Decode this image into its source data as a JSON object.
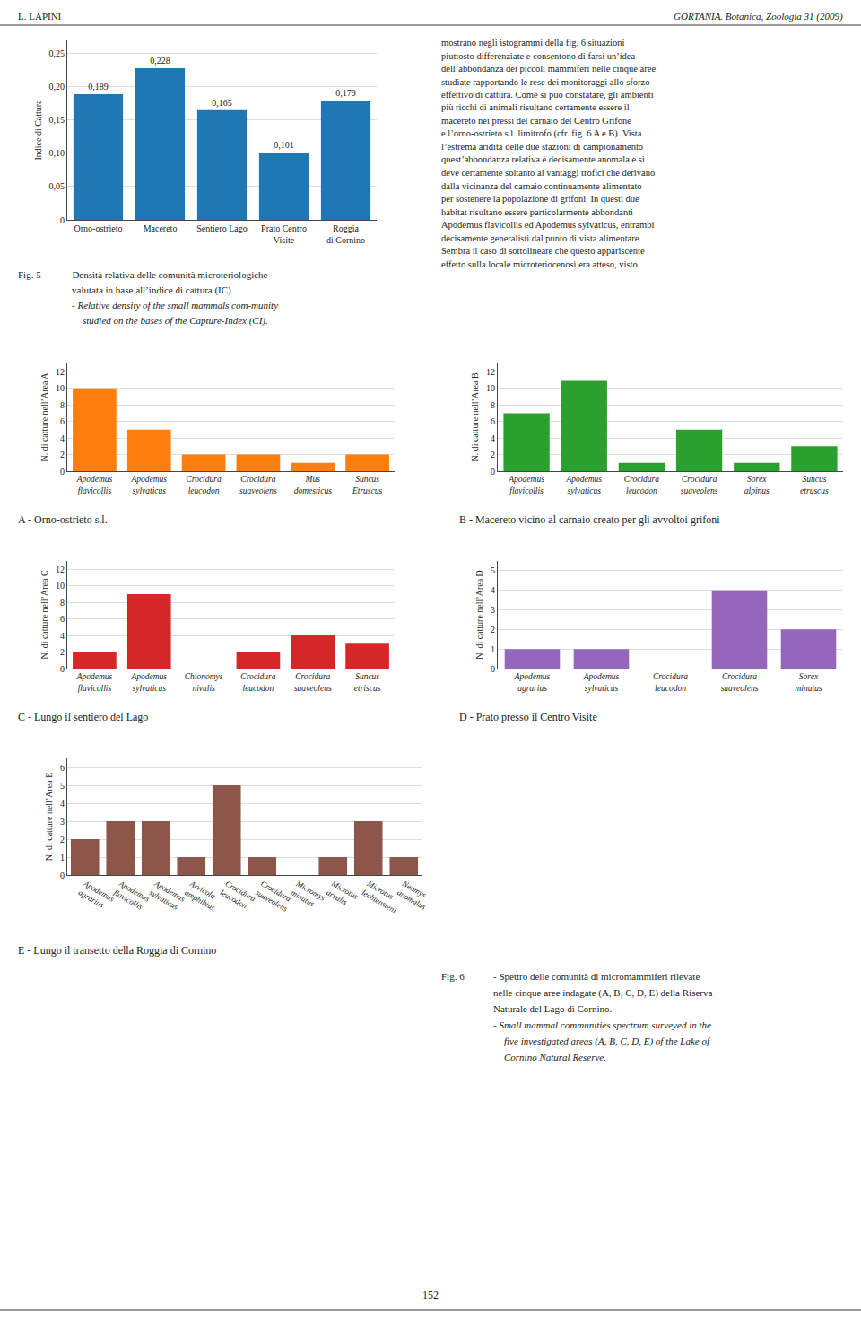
{
  "chart_data": [
    {
      "type": "bar",
      "categories": [
        "Orno-ostrieto",
        "Macereto",
        "Sentiero Lago",
        "Prato Centro\nVisite",
        "Roggia\ndi Cornino"
      ],
      "values": [
        0.189,
        0.228,
        0.165,
        0.101,
        0.179
      ],
      "value_labels": [
        "0,189",
        "0,228",
        "0,165",
        "0,101",
        "0,179"
      ],
      "data_labels": true,
      "y_label": "Indice di Cattura",
      "ylim": [
        0,
        0.27
      ],
      "yticks": [
        0,
        {
          "value": 0.05,
          "label": "0,05"
        },
        {
          "value": 0.1,
          "label": "0,10"
        },
        {
          "value": 0.15,
          "label": "0,15"
        },
        {
          "value": 0.2,
          "label": "0,20"
        },
        {
          "value": 0.25,
          "label": "0,25"
        }
      ],
      "grid": true,
      "annotations": [
        "L. LAPINI",
        "GORTANIA. Botanica, Zoologia 31 (2009)",
        "mostrano negli istogrammi della fig. 6 situazioni",
        "piuttosto differenziate e consentono di farsi un’idea",
        "dell’abbondanza dei piccoli mammiferi nelle cinque aree",
        "studiate rapportando le rese dei monitoraggi allo sforzo",
        "effettivo di cattura. Come si può constatare, gli ambienti",
        "più ricchi di animali risultano certamente essere il",
        "macereto nei pressi del carnaio del Centro Grifone",
        "e l’orno-ostrieto s.l. limitrofo (cfr. fig. 6 A e B). Vista",
        "l’estrema aridità delle due stazioni di campionamento",
        "quest’abbondanza relativa è decisamente anomala e si",
        "deve certamente soltanto ai vantaggi trofici che derivano",
        "dalla vicinanza del carnaio continuamente alimentato",
        "per sostenere la popolazione di grifoni. In questi due",
        "habitat risultano essere particolarmente abbondanti",
        "Apodemus flavicollis ed Apodemus sylvaticus, entrambi",
        "decisamente generalisti dal punto di vista alimentare.",
        "Sembra il caso di sottolineare che questo appariscente",
        "effetto sulla locale microteriocenosi era atteso, visto",
        "Fig. 5",
        "- Densità relativa delle comunità microteriologiche",
        "valutata in base all’indice di cattura (IC).",
        "- Relative density of the small mammals com-munity",
        "studied on the bases of the Capture-Index (CI).",
        "152"
      ]
    },
    {
      "type": "bar",
      "title": "A - Orno-ostrieto s.l.",
      "categories": [
        "Apodemus\nflavicollis",
        "Apodemus\nsylvaticus",
        "Crocidura\nleucodon",
        "Crocidura\nsuaveolens",
        "Mus\ndomesticus",
        "Suncus\nEtruscus"
      ],
      "values": [
        10,
        5,
        2,
        2,
        1,
        2
      ],
      "y_label": "N. di catture nell’Area A",
      "ylim": [
        0,
        13
      ],
      "yticks": [
        0,
        2,
        4,
        6,
        8,
        10,
        12
      ],
      "grid": true
    },
    {
      "type": "bar",
      "title": "B - Macereto vicino al carnaio creato per gli avvoltoi grifoni",
      "categories": [
        "Apodemus\nflavicollis",
        "Apodemus\nsylvaticus",
        "Crocidura\nleucodon",
        "Crocidura\nsuaveolens",
        "Sorex\nalpinus",
        "Suncus\netruscus"
      ],
      "values": [
        7,
        11,
        1,
        5,
        1,
        3
      ],
      "y_label": "N. di catture nell’Area B",
      "ylim": [
        0,
        13
      ],
      "yticks": [
        0,
        2,
        4,
        6,
        8,
        10,
        12
      ],
      "grid": true
    },
    {
      "type": "bar",
      "title": "C - Lungo il sentiero del Lago",
      "categories": [
        "Apodemus\nflavicollis",
        "Apodemus\nsylvaticus",
        "Chionomys\nnivalis",
        "Crocidura\nleucodon",
        "Crocidura\nsuaveolens",
        "Suncus\netriscus"
      ],
      "values": [
        2,
        9,
        0,
        2,
        4,
        3
      ],
      "y_label": "N. di catture nell’Area C",
      "ylim": [
        0,
        13
      ],
      "yticks": [
        0,
        2,
        4,
        6,
        8,
        10,
        12
      ],
      "grid": true
    },
    {
      "type": "bar",
      "title": "D - Prato presso il Centro Visite",
      "categories": [
        "Apodemus\nagrarius",
        "Apodemus\nsylvaticus",
        "Crocidura\nleucodon",
        "Crocidura\nsuaveolens",
        "Sorex\nminutus"
      ],
      "values": [
        1,
        1,
        0,
        4,
        2
      ],
      "y_label": "N. di catture nell’Area D",
      "ylim": [
        0,
        5.5
      ],
      "yticks": [
        0,
        1,
        2,
        3,
        4,
        5
      ],
      "grid": true
    },
    {
      "type": "bar",
      "title": "E - Lungo il transetto della Roggia di Cornino",
      "categories": [
        "Apodemus\nagrarius",
        "Apodemus\nflavicollis",
        "Apodemus\nsylvaticus",
        "Arvicola\namphibius",
        "Crocidura\nleucodon",
        "Crocidura\nsuaveolens",
        "Micromys\nminutus",
        "Microtus\narvalis",
        "Microtus\nlechtensteni",
        "Neomys\nanomalus"
      ],
      "values": [
        2,
        3,
        3,
        1,
        5,
        1,
        0,
        1,
        3,
        1
      ],
      "y_label": "N. di catture nell’Area E",
      "ylim": [
        0,
        6.5
      ],
      "yticks": [
        0,
        1,
        2,
        3,
        4,
        5,
        6
      ],
      "grid": true,
      "annotations": [
        "Fig. 6",
        "- Spettro delle comunità di micromammiferi rilevate",
        "nelle cinque aree indagate (A, B, C, D, E) della Riserva",
        "Naturale del Lago di Cornino.",
        "- Small mammal communities spectrum surveyed in the",
        "five investigated areas (A, B, C, D, E) of the Lake of",
        "Cornino Natural Reserve."
      ]
    }
  ]
}
